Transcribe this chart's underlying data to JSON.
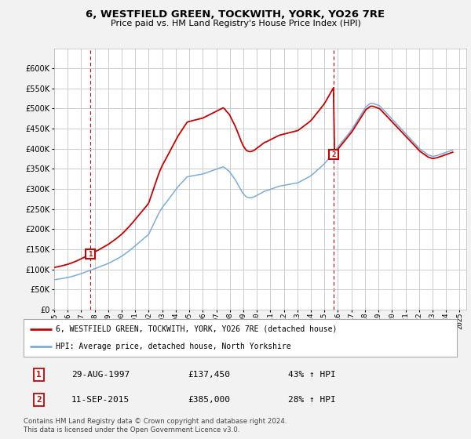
{
  "title": "6, WESTFIELD GREEN, TOCKWITH, YORK, YO26 7RE",
  "subtitle": "Price paid vs. HM Land Registry's House Price Index (HPI)",
  "ylim": [
    0,
    650000
  ],
  "yticks": [
    0,
    50000,
    100000,
    150000,
    200000,
    250000,
    300000,
    350000,
    400000,
    450000,
    500000,
    550000,
    600000
  ],
  "xlim_start": 1995.0,
  "xlim_end": 2025.5,
  "bg_color": "#f2f2f2",
  "plot_bg_color": "#ffffff",
  "grid_color": "#cccccc",
  "red_color": "#cc0000",
  "blue_color": "#7aaddb",
  "legend_label_red": "6, WESTFIELD GREEN, TOCKWITH, YORK, YO26 7RE (detached house)",
  "legend_label_blue": "HPI: Average price, detached house, North Yorkshire",
  "transaction1_label": "1",
  "transaction1_date": "29-AUG-1997",
  "transaction1_price": "£137,450",
  "transaction1_hpi": "43% ↑ HPI",
  "transaction1_year": 1997.66,
  "transaction1_value": 137450,
  "transaction2_label": "2",
  "transaction2_date": "11-SEP-2015",
  "transaction2_price": "£385,000",
  "transaction2_hpi": "28% ↑ HPI",
  "transaction2_year": 2015.69,
  "transaction2_value": 385000,
  "footnote": "Contains HM Land Registry data © Crown copyright and database right 2024.\nThis data is licensed under the Open Government Licence v3.0.",
  "hpi_scale1": 1.4286,
  "hpi_scale2": 1.28,
  "hpi_switch_year": 2015.69,
  "hpi_base1_year": 1997.66,
  "hpi_base1_value": 96200,
  "hpi_base2_value": 300800,
  "hpi_months": [
    1995.0,
    1995.083,
    1995.167,
    1995.25,
    1995.333,
    1995.417,
    1995.5,
    1995.583,
    1995.667,
    1995.75,
    1995.833,
    1995.917,
    1996.0,
    1996.083,
    1996.167,
    1996.25,
    1996.333,
    1996.417,
    1996.5,
    1996.583,
    1996.667,
    1996.75,
    1996.833,
    1996.917,
    1997.0,
    1997.083,
    1997.167,
    1997.25,
    1997.333,
    1997.417,
    1997.5,
    1997.583,
    1997.667,
    1997.75,
    1997.833,
    1997.917,
    1998.0,
    1998.083,
    1998.167,
    1998.25,
    1998.333,
    1998.417,
    1998.5,
    1998.583,
    1998.667,
    1998.75,
    1998.833,
    1998.917,
    1999.0,
    1999.083,
    1999.167,
    1999.25,
    1999.333,
    1999.417,
    1999.5,
    1999.583,
    1999.667,
    1999.75,
    1999.833,
    1999.917,
    2000.0,
    2000.083,
    2000.167,
    2000.25,
    2000.333,
    2000.417,
    2000.5,
    2000.583,
    2000.667,
    2000.75,
    2000.833,
    2000.917,
    2001.0,
    2001.083,
    2001.167,
    2001.25,
    2001.333,
    2001.417,
    2001.5,
    2001.583,
    2001.667,
    2001.75,
    2001.833,
    2001.917,
    2002.0,
    2002.083,
    2002.167,
    2002.25,
    2002.333,
    2002.417,
    2002.5,
    2002.583,
    2002.667,
    2002.75,
    2002.833,
    2002.917,
    2003.0,
    2003.083,
    2003.167,
    2003.25,
    2003.333,
    2003.417,
    2003.5,
    2003.583,
    2003.667,
    2003.75,
    2003.833,
    2003.917,
    2004.0,
    2004.083,
    2004.167,
    2004.25,
    2004.333,
    2004.417,
    2004.5,
    2004.583,
    2004.667,
    2004.75,
    2004.833,
    2004.917,
    2005.0,
    2005.083,
    2005.167,
    2005.25,
    2005.333,
    2005.417,
    2005.5,
    2005.583,
    2005.667,
    2005.75,
    2005.833,
    2005.917,
    2006.0,
    2006.083,
    2006.167,
    2006.25,
    2006.333,
    2006.417,
    2006.5,
    2006.583,
    2006.667,
    2006.75,
    2006.833,
    2006.917,
    2007.0,
    2007.083,
    2007.167,
    2007.25,
    2007.333,
    2007.417,
    2007.5,
    2007.583,
    2007.667,
    2007.75,
    2007.833,
    2007.917,
    2008.0,
    2008.083,
    2008.167,
    2008.25,
    2008.333,
    2008.417,
    2008.5,
    2008.583,
    2008.667,
    2008.75,
    2008.833,
    2008.917,
    2009.0,
    2009.083,
    2009.167,
    2009.25,
    2009.333,
    2009.417,
    2009.5,
    2009.583,
    2009.667,
    2009.75,
    2009.833,
    2009.917,
    2010.0,
    2010.083,
    2010.167,
    2010.25,
    2010.333,
    2010.417,
    2010.5,
    2010.583,
    2010.667,
    2010.75,
    2010.833,
    2010.917,
    2011.0,
    2011.083,
    2011.167,
    2011.25,
    2011.333,
    2011.417,
    2011.5,
    2011.583,
    2011.667,
    2011.75,
    2011.833,
    2011.917,
    2012.0,
    2012.083,
    2012.167,
    2012.25,
    2012.333,
    2012.417,
    2012.5,
    2012.583,
    2012.667,
    2012.75,
    2012.833,
    2012.917,
    2013.0,
    2013.083,
    2013.167,
    2013.25,
    2013.333,
    2013.417,
    2013.5,
    2013.583,
    2013.667,
    2013.75,
    2013.833,
    2013.917,
    2014.0,
    2014.083,
    2014.167,
    2014.25,
    2014.333,
    2014.417,
    2014.5,
    2014.583,
    2014.667,
    2014.75,
    2014.833,
    2014.917,
    2015.0,
    2015.083,
    2015.167,
    2015.25,
    2015.333,
    2015.417,
    2015.5,
    2015.583,
    2015.667,
    2015.75,
    2015.833,
    2015.917,
    2016.0,
    2016.083,
    2016.167,
    2016.25,
    2016.333,
    2016.417,
    2016.5,
    2016.583,
    2016.667,
    2016.75,
    2016.833,
    2016.917,
    2017.0,
    2017.083,
    2017.167,
    2017.25,
    2017.333,
    2017.417,
    2017.5,
    2017.583,
    2017.667,
    2017.75,
    2017.833,
    2017.917,
    2018.0,
    2018.083,
    2018.167,
    2018.25,
    2018.333,
    2018.417,
    2018.5,
    2018.583,
    2018.667,
    2018.75,
    2018.833,
    2018.917,
    2019.0,
    2019.083,
    2019.167,
    2019.25,
    2019.333,
    2019.417,
    2019.5,
    2019.583,
    2019.667,
    2019.75,
    2019.833,
    2019.917,
    2020.0,
    2020.083,
    2020.167,
    2020.25,
    2020.333,
    2020.417,
    2020.5,
    2020.583,
    2020.667,
    2020.75,
    2020.833,
    2020.917,
    2021.0,
    2021.083,
    2021.167,
    2021.25,
    2021.333,
    2021.417,
    2021.5,
    2021.583,
    2021.667,
    2021.75,
    2021.833,
    2021.917,
    2022.0,
    2022.083,
    2022.167,
    2022.25,
    2022.333,
    2022.417,
    2022.5,
    2022.583,
    2022.667,
    2022.75,
    2022.833,
    2022.917,
    2023.0,
    2023.083,
    2023.167,
    2023.25,
    2023.333,
    2023.417,
    2023.5,
    2023.583,
    2023.667,
    2023.75,
    2023.833,
    2023.917,
    2024.0,
    2024.083,
    2024.167,
    2024.25,
    2024.333,
    2024.417,
    2024.5
  ],
  "hpi_raw": [
    74000,
    74400,
    74800,
    75200,
    75600,
    76100,
    76500,
    77000,
    77500,
    78000,
    78500,
    79000,
    79600,
    80200,
    80900,
    81600,
    82300,
    83100,
    83900,
    84700,
    85600,
    86500,
    87400,
    88400,
    89300,
    90300,
    91300,
    92300,
    93300,
    94300,
    95300,
    96300,
    97300,
    98300,
    99400,
    100400,
    101400,
    102400,
    103500,
    104500,
    105600,
    106700,
    107800,
    108900,
    110100,
    111200,
    112400,
    113500,
    114700,
    116000,
    117400,
    118800,
    120200,
    121600,
    123100,
    124600,
    126200,
    127800,
    129400,
    131000,
    132700,
    134600,
    136600,
    138600,
    140600,
    142700,
    144800,
    147000,
    149200,
    151500,
    153800,
    156200,
    158500,
    160900,
    163200,
    165600,
    168000,
    170400,
    172800,
    175200,
    177600,
    180000,
    182400,
    184800,
    187800,
    193400,
    199200,
    205000,
    210900,
    216700,
    222600,
    228400,
    234300,
    239500,
    244700,
    249200,
    253700,
    257300,
    261000,
    264700,
    268400,
    272000,
    275700,
    279500,
    283200,
    286900,
    290700,
    294400,
    298100,
    301800,
    305600,
    308700,
    311700,
    314700,
    317700,
    320700,
    323700,
    326700,
    329700,
    330700,
    331200,
    331700,
    332200,
    332700,
    333200,
    333700,
    334200,
    334700,
    335200,
    335700,
    336200,
    336700,
    337200,
    338200,
    339200,
    340200,
    341200,
    342200,
    343200,
    344200,
    345200,
    346200,
    347200,
    348200,
    349200,
    350200,
    351200,
    352200,
    353200,
    354200,
    355200,
    354000,
    352000,
    349000,
    347000,
    345000,
    342000,
    338000,
    334000,
    330000,
    326000,
    322000,
    317000,
    312000,
    307000,
    302000,
    297000,
    292000,
    288000,
    285000,
    282000,
    280000,
    279000,
    278500,
    278000,
    278500,
    279000,
    280000,
    281000,
    282500,
    284000,
    285500,
    287000,
    288500,
    290000,
    291500,
    293000,
    294500,
    295000,
    296000,
    297000,
    298000,
    299000,
    300000,
    301000,
    302000,
    303000,
    304000,
    305000,
    306000,
    307000,
    307500,
    308000,
    308500,
    309000,
    309500,
    310000,
    310500,
    311000,
    311500,
    312000,
    312500,
    313000,
    313500,
    314000,
    314500,
    315000,
    316000,
    317500,
    319000,
    320500,
    322000,
    323500,
    325000,
    326500,
    328000,
    329500,
    331000,
    333000,
    335000,
    337500,
    340000,
    342500,
    345000,
    347500,
    350000,
    352500,
    355000,
    357500,
    360000,
    363000,
    366000,
    369500,
    373000,
    376500,
    380000,
    383500,
    387000,
    390500,
    394000,
    397500,
    401000,
    404500,
    408000,
    411500,
    415000,
    418500,
    422000,
    425500,
    429000,
    432500,
    436000,
    439500,
    443000,
    447000,
    451000,
    455500,
    460000,
    464500,
    469000,
    473500,
    478000,
    482500,
    487000,
    491500,
    496000,
    500500,
    505000,
    507000,
    509000,
    511000,
    513000,
    513000,
    513000,
    512000,
    511000,
    510000,
    509000,
    508000,
    507000,
    504000,
    501000,
    498000,
    495000,
    492000,
    489000,
    486000,
    483000,
    480000,
    477000,
    474000,
    471000,
    468000,
    465000,
    462000,
    459000,
    456000,
    453000,
    450000,
    447000,
    444000,
    441000,
    438000,
    435000,
    432000,
    429000,
    426000,
    423000,
    420000,
    417000,
    414000,
    411000,
    408000,
    405000,
    402000,
    399000,
    397000,
    395000,
    393000,
    391000,
    389000,
    387000,
    385000,
    384000,
    383000,
    382000,
    381000,
    381500,
    382000,
    382500,
    383000,
    384000,
    385000,
    386000,
    387000,
    388000,
    389000,
    390000,
    391000,
    392000,
    393000,
    394000,
    395000,
    396000,
    397000,
    398000,
    399000,
    400000,
    401000,
    402000,
    403000,
    404000,
    405000
  ]
}
